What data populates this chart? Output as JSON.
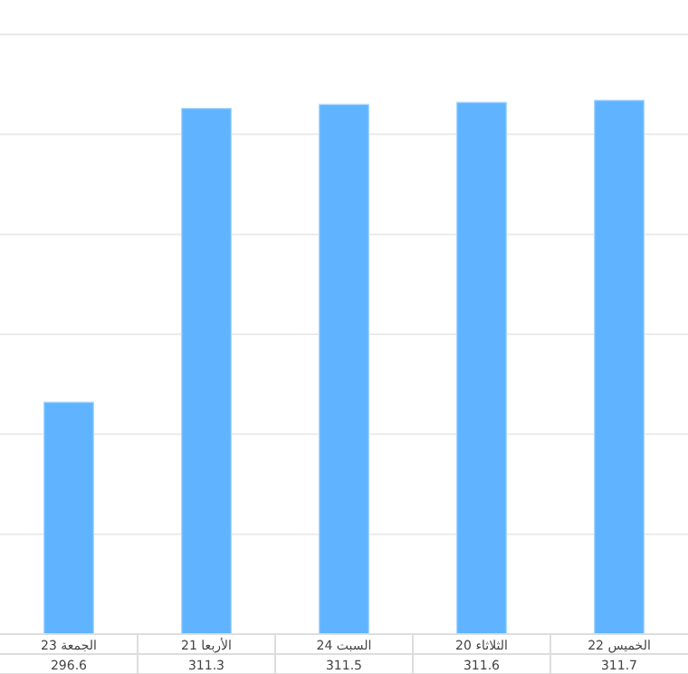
{
  "chart_data": {
    "type": "bar",
    "categories": [
      "الجمعة 23",
      "الأربعا 21",
      "السبت 24",
      "الثلاثاء 20",
      "الخميس 22"
    ],
    "values": [
      296.6,
      311.3,
      311.5,
      311.6,
      311.7
    ],
    "color": "#60b4ff",
    "ylim": [
      285,
      315
    ],
    "yticks": [
      {
        "value": 285,
        "label": null
      },
      {
        "value": 290,
        "label": null
      },
      {
        "value": 295,
        "label": null
      },
      {
        "value": 300,
        "label": null
      },
      {
        "value": 305,
        "label": null
      },
      {
        "value": 310,
        "label": null
      },
      {
        "value": 315,
        "label": null
      }
    ],
    "grid": "y",
    "tick_labels": "x",
    "data_labels": true
  }
}
